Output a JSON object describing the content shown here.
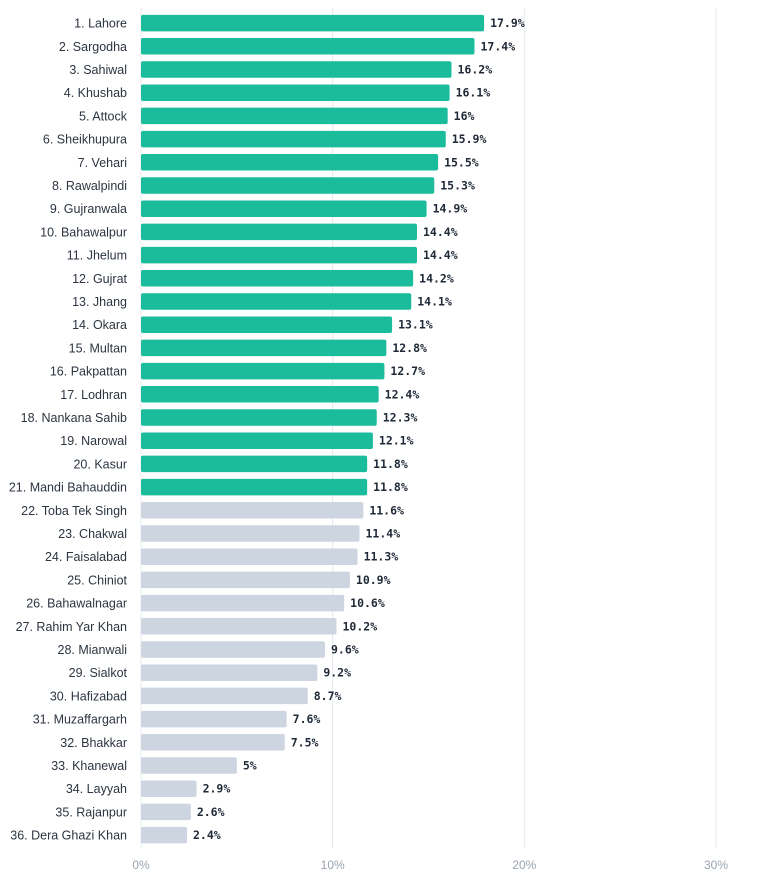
{
  "chart_data": {
    "type": "bar",
    "orientation": "horizontal",
    "categories": [
      "1. Lahore",
      "2. Sargodha",
      "3. Sahiwal",
      "4. Khushab",
      "5. Attock",
      "6. Sheikhupura",
      "7. Vehari",
      "8. Rawalpindi",
      "9. Gujranwala",
      "10. Bahawalpur",
      "11. Jhelum",
      "12. Gujrat",
      "13. Jhang",
      "14. Okara",
      "15. Multan",
      "16. Pakpattan",
      "17. Lodhran",
      "18. Nankana Sahib",
      "19. Narowal",
      "20. Kasur",
      "21. Mandi Bahauddin",
      "22. Toba Tek Singh",
      "23. Chakwal",
      "24. Faisalabad",
      "25. Chiniot",
      "26. Bahawalnagar",
      "27. Rahim Yar Khan",
      "28. Mianwali",
      "29. Sialkot",
      "30. Hafizabad",
      "31. Muzaffargarh",
      "32. Bhakkar",
      "33. Khanewal",
      "34. Layyah",
      "35. Rajanpur",
      "36. Dera Ghazi Khan"
    ],
    "values": [
      17.9,
      17.4,
      16.2,
      16.1,
      16,
      15.9,
      15.5,
      15.3,
      14.9,
      14.4,
      14.4,
      14.2,
      14.1,
      13.1,
      12.8,
      12.7,
      12.4,
      12.3,
      12.1,
      11.8,
      11.8,
      11.6,
      11.4,
      11.3,
      10.9,
      10.6,
      10.2,
      9.6,
      9.2,
      8.7,
      7.6,
      7.5,
      5,
      2.9,
      2.6,
      2.4
    ],
    "value_labels": [
      "17.9%",
      "17.4%",
      "16.2%",
      "16.1%",
      "16%",
      "15.9%",
      "15.5%",
      "15.3%",
      "14.9%",
      "14.4%",
      "14.4%",
      "14.2%",
      "14.1%",
      "13.1%",
      "12.8%",
      "12.7%",
      "12.4%",
      "12.3%",
      "12.1%",
      "11.8%",
      "11.8%",
      "11.6%",
      "11.4%",
      "11.3%",
      "10.9%",
      "10.6%",
      "10.2%",
      "9.6%",
      "9.2%",
      "8.7%",
      "7.6%",
      "7.5%",
      "5%",
      "2.9%",
      "2.6%",
      "2.4%"
    ],
    "highlight_count": 21,
    "colors": {
      "highlight": "#1abc9c",
      "other": "#cdd5e0",
      "grid": "#e5e8ec"
    },
    "xlim": [
      0,
      30
    ],
    "x_ticks": [
      0,
      10,
      20,
      30
    ],
    "x_tick_labels": [
      "0%",
      "10%",
      "20%",
      "30%"
    ],
    "grid": true,
    "title": "",
    "xlabel": "",
    "ylabel": ""
  }
}
